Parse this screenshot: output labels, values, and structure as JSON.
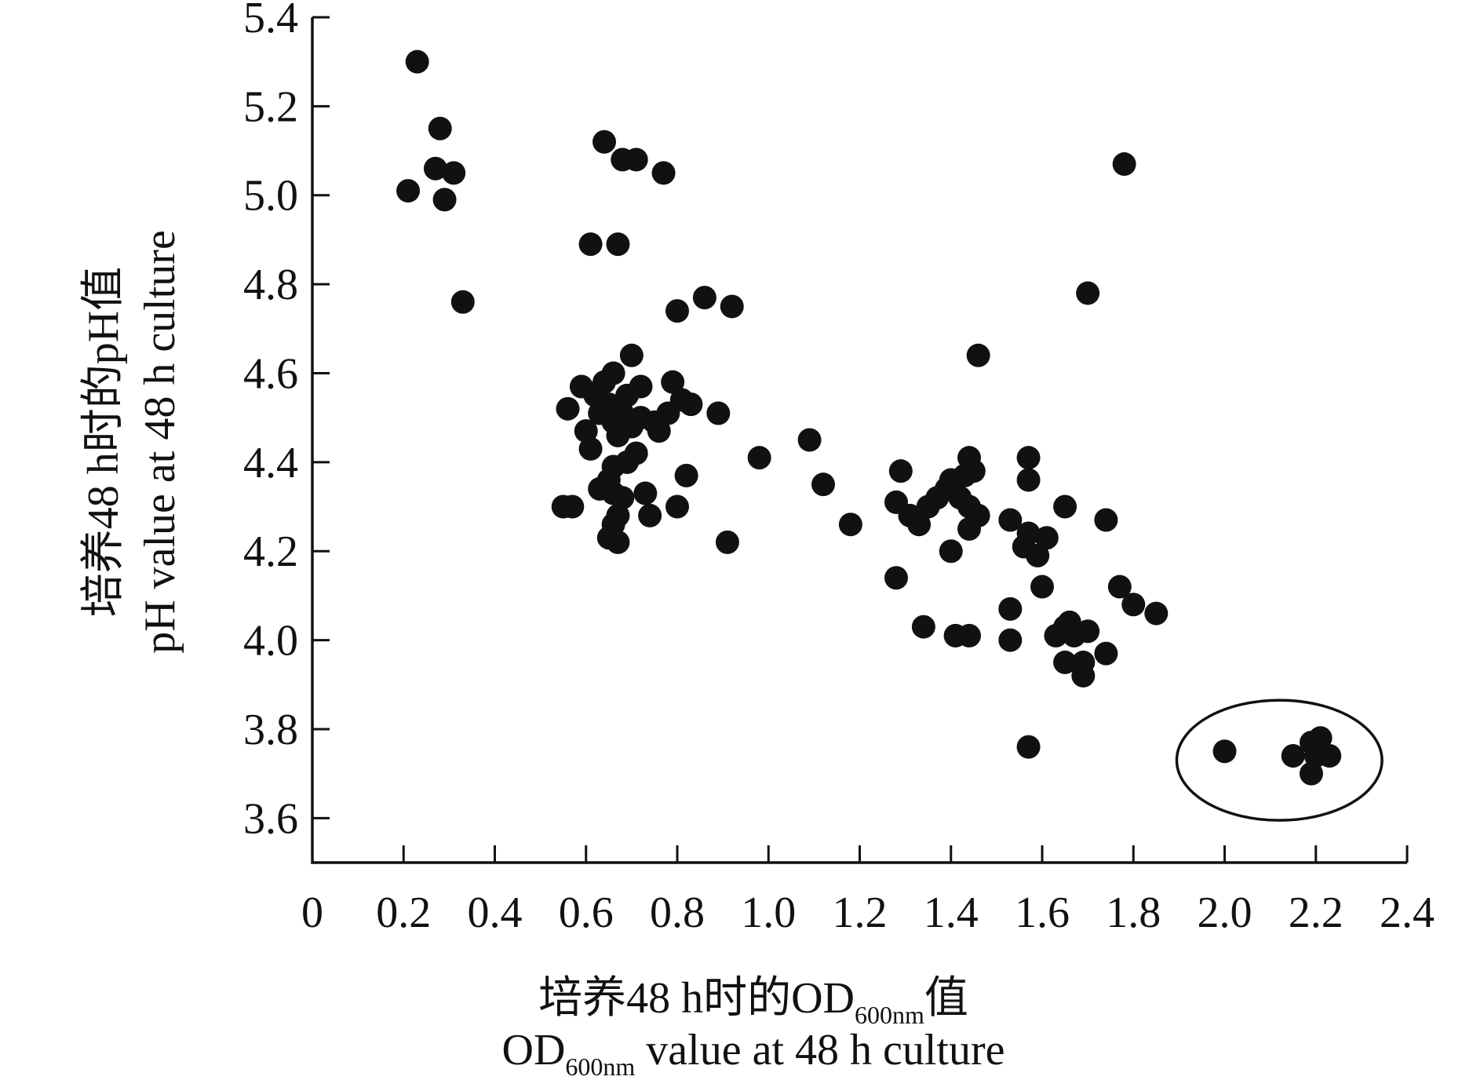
{
  "chart_data": {
    "type": "scatter",
    "x_label": {
      "cn_prefix": "培养48 h时的OD",
      "cn_sub": "600nm",
      "cn_suffix": "值",
      "en_prefix": "OD",
      "en_sub": "600nm",
      "en_suffix": " value at 48 h culture"
    },
    "y_label": {
      "cn": "培养48 h时的pH值",
      "en": "pH value at 48 h culture"
    },
    "xlim": [
      0,
      2.4
    ],
    "ylim": [
      3.5,
      5.4
    ],
    "x_ticks": [
      {
        "value": 0,
        "label": "0"
      },
      {
        "value": 0.2,
        "label": "0.2"
      },
      {
        "value": 0.4,
        "label": "0.4"
      },
      {
        "value": 0.6,
        "label": "0.6"
      },
      {
        "value": 0.8,
        "label": "0.8"
      },
      {
        "value": 1.0,
        "label": "1.0"
      },
      {
        "value": 1.2,
        "label": "1.2"
      },
      {
        "value": 1.4,
        "label": "1.4"
      },
      {
        "value": 1.6,
        "label": "1.6"
      },
      {
        "value": 1.8,
        "label": "1.8"
      },
      {
        "value": 2.0,
        "label": "2.0"
      },
      {
        "value": 2.2,
        "label": "2.2"
      },
      {
        "value": 2.4,
        "label": "2.4"
      }
    ],
    "y_ticks": [
      {
        "value": 3.6,
        "label": "3.6"
      },
      {
        "value": 3.8,
        "label": "3.8"
      },
      {
        "value": 4.0,
        "label": "4.0"
      },
      {
        "value": 4.2,
        "label": "4.2"
      },
      {
        "value": 4.4,
        "label": "4.4"
      },
      {
        "value": 4.6,
        "label": "4.6"
      },
      {
        "value": 4.8,
        "label": "4.8"
      },
      {
        "value": 5.0,
        "label": "5.0"
      },
      {
        "value": 5.2,
        "label": "5.2"
      },
      {
        "value": 5.4,
        "label": "5.4"
      }
    ],
    "grid": false,
    "points": [
      {
        "x": 0.23,
        "y": 5.3
      },
      {
        "x": 0.28,
        "y": 5.15
      },
      {
        "x": 0.27,
        "y": 5.06
      },
      {
        "x": 0.31,
        "y": 5.05
      },
      {
        "x": 0.21,
        "y": 5.01
      },
      {
        "x": 0.29,
        "y": 4.99
      },
      {
        "x": 0.33,
        "y": 4.76
      },
      {
        "x": 0.64,
        "y": 5.12
      },
      {
        "x": 0.68,
        "y": 5.08
      },
      {
        "x": 0.71,
        "y": 5.08
      },
      {
        "x": 0.77,
        "y": 5.05
      },
      {
        "x": 0.61,
        "y": 4.89
      },
      {
        "x": 0.67,
        "y": 4.89
      },
      {
        "x": 0.86,
        "y": 4.77
      },
      {
        "x": 0.8,
        "y": 4.74
      },
      {
        "x": 0.92,
        "y": 4.75
      },
      {
        "x": 0.7,
        "y": 4.64
      },
      {
        "x": 0.66,
        "y": 4.6
      },
      {
        "x": 0.64,
        "y": 4.58
      },
      {
        "x": 0.59,
        "y": 4.57
      },
      {
        "x": 0.72,
        "y": 4.57
      },
      {
        "x": 0.79,
        "y": 4.58
      },
      {
        "x": 0.62,
        "y": 4.55
      },
      {
        "x": 0.65,
        "y": 4.53
      },
      {
        "x": 0.69,
        "y": 4.55
      },
      {
        "x": 0.63,
        "y": 4.51
      },
      {
        "x": 0.81,
        "y": 4.54
      },
      {
        "x": 0.83,
        "y": 4.53
      },
      {
        "x": 0.56,
        "y": 4.52
      },
      {
        "x": 0.68,
        "y": 4.51
      },
      {
        "x": 0.72,
        "y": 4.5
      },
      {
        "x": 0.78,
        "y": 4.51
      },
      {
        "x": 0.89,
        "y": 4.51
      },
      {
        "x": 0.66,
        "y": 4.49
      },
      {
        "x": 0.7,
        "y": 4.48
      },
      {
        "x": 0.75,
        "y": 4.49
      },
      {
        "x": 0.6,
        "y": 4.47
      },
      {
        "x": 0.67,
        "y": 4.46
      },
      {
        "x": 0.76,
        "y": 4.47
      },
      {
        "x": 0.61,
        "y": 4.43
      },
      {
        "x": 0.71,
        "y": 4.42
      },
      {
        "x": 0.69,
        "y": 4.4
      },
      {
        "x": 0.66,
        "y": 4.39
      },
      {
        "x": 0.65,
        "y": 4.36
      },
      {
        "x": 0.82,
        "y": 4.37
      },
      {
        "x": 0.63,
        "y": 4.34
      },
      {
        "x": 0.66,
        "y": 4.33
      },
      {
        "x": 0.68,
        "y": 4.32
      },
      {
        "x": 0.73,
        "y": 4.33
      },
      {
        "x": 0.55,
        "y": 4.3
      },
      {
        "x": 0.57,
        "y": 4.3
      },
      {
        "x": 0.8,
        "y": 4.3
      },
      {
        "x": 0.67,
        "y": 4.28
      },
      {
        "x": 0.74,
        "y": 4.28
      },
      {
        "x": 0.66,
        "y": 4.26
      },
      {
        "x": 0.65,
        "y": 4.23
      },
      {
        "x": 0.67,
        "y": 4.22
      },
      {
        "x": 0.91,
        "y": 4.22
      },
      {
        "x": 0.98,
        "y": 4.41
      },
      {
        "x": 1.09,
        "y": 4.45
      },
      {
        "x": 1.12,
        "y": 4.35
      },
      {
        "x": 1.18,
        "y": 4.26
      },
      {
        "x": 1.29,
        "y": 4.38
      },
      {
        "x": 1.28,
        "y": 4.31
      },
      {
        "x": 1.31,
        "y": 4.28
      },
      {
        "x": 1.33,
        "y": 4.26
      },
      {
        "x": 1.35,
        "y": 4.3
      },
      {
        "x": 1.37,
        "y": 4.32
      },
      {
        "x": 1.39,
        "y": 4.34
      },
      {
        "x": 1.4,
        "y": 4.36
      },
      {
        "x": 1.43,
        "y": 4.37
      },
      {
        "x": 1.44,
        "y": 4.41
      },
      {
        "x": 1.45,
        "y": 4.38
      },
      {
        "x": 1.42,
        "y": 4.32
      },
      {
        "x": 1.44,
        "y": 4.3
      },
      {
        "x": 1.46,
        "y": 4.28
      },
      {
        "x": 1.44,
        "y": 4.25
      },
      {
        "x": 1.4,
        "y": 4.2
      },
      {
        "x": 1.28,
        "y": 4.14
      },
      {
        "x": 1.46,
        "y": 4.64
      },
      {
        "x": 1.34,
        "y": 4.03
      },
      {
        "x": 1.41,
        "y": 4.01
      },
      {
        "x": 1.44,
        "y": 4.01
      },
      {
        "x": 1.53,
        "y": 4.27
      },
      {
        "x": 1.57,
        "y": 4.41
      },
      {
        "x": 1.57,
        "y": 4.36
      },
      {
        "x": 1.57,
        "y": 4.24
      },
      {
        "x": 1.56,
        "y": 4.21
      },
      {
        "x": 1.59,
        "y": 4.19
      },
      {
        "x": 1.61,
        "y": 4.23
      },
      {
        "x": 1.6,
        "y": 4.12
      },
      {
        "x": 1.53,
        "y": 4.07
      },
      {
        "x": 1.53,
        "y": 4.0
      },
      {
        "x": 1.65,
        "y": 4.3
      },
      {
        "x": 1.63,
        "y": 4.01
      },
      {
        "x": 1.65,
        "y": 4.03
      },
      {
        "x": 1.66,
        "y": 4.04
      },
      {
        "x": 1.67,
        "y": 4.01
      },
      {
        "x": 1.65,
        "y": 3.95
      },
      {
        "x": 1.69,
        "y": 3.95
      },
      {
        "x": 1.69,
        "y": 3.92
      },
      {
        "x": 1.7,
        "y": 4.02
      },
      {
        "x": 1.74,
        "y": 3.97
      },
      {
        "x": 1.57,
        "y": 3.76
      },
      {
        "x": 1.7,
        "y": 4.78
      },
      {
        "x": 1.78,
        "y": 5.07
      },
      {
        "x": 1.74,
        "y": 4.27
      },
      {
        "x": 1.77,
        "y": 4.12
      },
      {
        "x": 1.8,
        "y": 4.08
      },
      {
        "x": 1.85,
        "y": 4.06
      },
      {
        "x": 2.0,
        "y": 3.75
      },
      {
        "x": 2.15,
        "y": 3.74
      },
      {
        "x": 2.19,
        "y": 3.77
      },
      {
        "x": 2.2,
        "y": 3.74
      },
      {
        "x": 2.21,
        "y": 3.78
      },
      {
        "x": 2.23,
        "y": 3.74
      },
      {
        "x": 2.19,
        "y": 3.7
      }
    ],
    "highlight": {
      "center_x": 2.12,
      "center_y": 3.73,
      "radius_x": 0.225,
      "radius_y": 0.135
    }
  }
}
